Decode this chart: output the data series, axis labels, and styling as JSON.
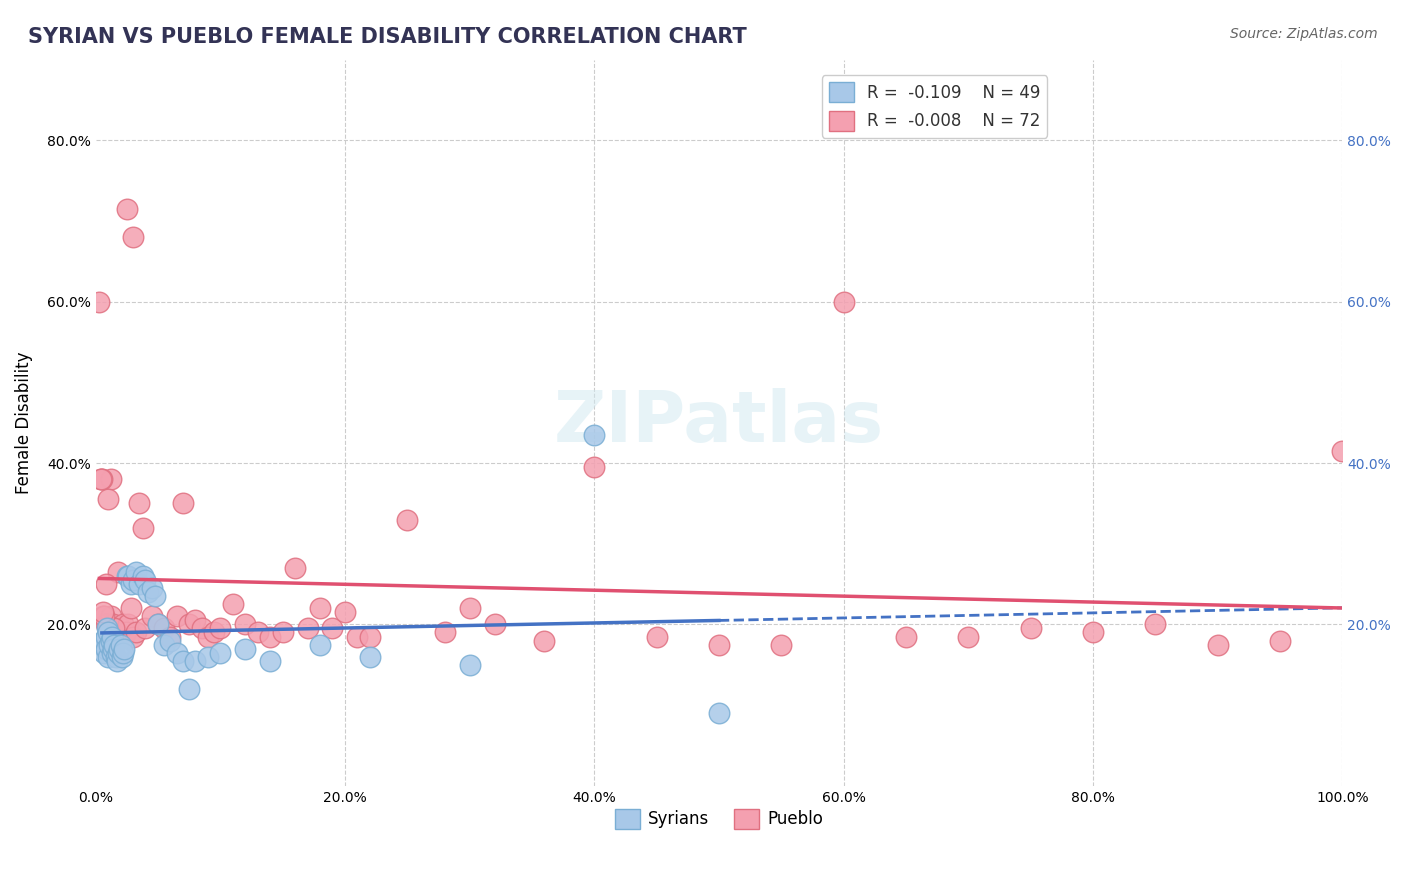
{
  "title": "SYRIAN VS PUEBLO FEMALE DISABILITY CORRELATION CHART",
  "source": "Source: ZipAtlas.com",
  "xlabel": "",
  "ylabel": "Female Disability",
  "xlim": [
    0.0,
    1.0
  ],
  "ylim": [
    0.0,
    0.9
  ],
  "x_ticks": [
    0.0,
    0.2,
    0.4,
    0.6,
    0.8,
    1.0
  ],
  "x_tick_labels": [
    "0.0%",
    "20.0%",
    "40.0%",
    "60.0%",
    "80.0%",
    "100.0%"
  ],
  "y_ticks": [
    0.0,
    0.2,
    0.4,
    0.6,
    0.8
  ],
  "y_tick_labels": [
    "",
    "20.0%",
    "40.0%",
    "60.0%",
    "80.0%"
  ],
  "syrian_color": "#a8c8e8",
  "pueblo_color": "#f4a0b0",
  "syrian_edge": "#7aaed4",
  "pueblo_edge": "#e07080",
  "blue_line_color": "#4472c4",
  "pink_line_color": "#e05070",
  "dashed_line_color": "#aaaaaa",
  "background_color": "#ffffff",
  "grid_color": "#cccccc",
  "legend_R_syrian": "R =  -0.109",
  "legend_N_syrian": "N = 49",
  "legend_R_pueblo": "R =  -0.008",
  "legend_N_pueblo": "N = 72",
  "watermark": "ZIPatlas",
  "syrian_x": [
    0.005,
    0.006,
    0.007,
    0.008,
    0.008,
    0.009,
    0.01,
    0.01,
    0.011,
    0.012,
    0.013,
    0.013,
    0.014,
    0.015,
    0.016,
    0.017,
    0.018,
    0.019,
    0.02,
    0.021,
    0.022,
    0.023,
    0.025,
    0.026,
    0.028,
    0.03,
    0.032,
    0.035,
    0.038,
    0.04,
    0.042,
    0.045,
    0.048,
    0.05,
    0.055,
    0.06,
    0.065,
    0.07,
    0.075,
    0.08,
    0.09,
    0.1,
    0.12,
    0.14,
    0.18,
    0.22,
    0.3,
    0.4,
    0.5
  ],
  "syrian_y": [
    0.175,
    0.18,
    0.165,
    0.185,
    0.17,
    0.195,
    0.16,
    0.19,
    0.175,
    0.18,
    0.165,
    0.185,
    0.17,
    0.175,
    0.16,
    0.155,
    0.165,
    0.17,
    0.175,
    0.16,
    0.165,
    0.17,
    0.26,
    0.26,
    0.25,
    0.255,
    0.265,
    0.25,
    0.26,
    0.255,
    0.24,
    0.245,
    0.235,
    0.2,
    0.175,
    0.18,
    0.165,
    0.155,
    0.12,
    0.155,
    0.16,
    0.165,
    0.17,
    0.155,
    0.175,
    0.16,
    0.15,
    0.435,
    0.09
  ],
  "pueblo_x": [
    0.004,
    0.006,
    0.008,
    0.01,
    0.012,
    0.014,
    0.016,
    0.018,
    0.02,
    0.022,
    0.024,
    0.026,
    0.028,
    0.03,
    0.032,
    0.035,
    0.038,
    0.04,
    0.045,
    0.05,
    0.055,
    0.06,
    0.065,
    0.07,
    0.075,
    0.08,
    0.085,
    0.09,
    0.095,
    0.1,
    0.11,
    0.12,
    0.13,
    0.14,
    0.15,
    0.16,
    0.17,
    0.18,
    0.19,
    0.2,
    0.21,
    0.22,
    0.25,
    0.28,
    0.32,
    0.36,
    0.4,
    0.45,
    0.5,
    0.55,
    0.6,
    0.65,
    0.7,
    0.75,
    0.8,
    0.85,
    0.9,
    0.95,
    1.0,
    0.3,
    0.03,
    0.025,
    0.018,
    0.015,
    0.012,
    0.01,
    0.008,
    0.007,
    0.006,
    0.005,
    0.003,
    0.004
  ],
  "pueblo_y": [
    0.38,
    0.21,
    0.2,
    0.195,
    0.21,
    0.2,
    0.195,
    0.185,
    0.195,
    0.2,
    0.19,
    0.2,
    0.22,
    0.185,
    0.19,
    0.35,
    0.32,
    0.195,
    0.21,
    0.2,
    0.195,
    0.185,
    0.21,
    0.35,
    0.2,
    0.205,
    0.195,
    0.185,
    0.19,
    0.195,
    0.225,
    0.2,
    0.19,
    0.185,
    0.19,
    0.27,
    0.195,
    0.22,
    0.195,
    0.215,
    0.185,
    0.185,
    0.33,
    0.19,
    0.2,
    0.18,
    0.395,
    0.185,
    0.175,
    0.175,
    0.6,
    0.185,
    0.185,
    0.195,
    0.19,
    0.2,
    0.175,
    0.18,
    0.415,
    0.22,
    0.68,
    0.715,
    0.265,
    0.195,
    0.38,
    0.355,
    0.25,
    0.21,
    0.215,
    0.38,
    0.6,
    0.38
  ]
}
